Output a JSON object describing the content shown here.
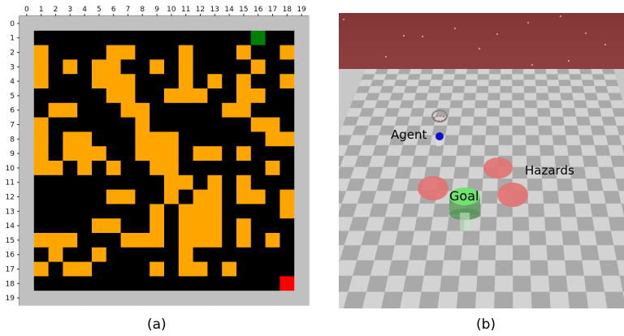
{
  "panel_a": {
    "caption": "(a)",
    "x_ticks": [
      "0",
      "1",
      "2",
      "3",
      "4",
      "5",
      "6",
      "7",
      "8",
      "9",
      "10",
      "11",
      "12",
      "13",
      "14",
      "15",
      "16",
      "17",
      "18",
      "19"
    ],
    "y_ticks": [
      "0",
      "1",
      "2",
      "3",
      "4",
      "5",
      "6",
      "7",
      "8",
      "9",
      "10",
      "11",
      "12",
      "13",
      "14",
      "15",
      "16",
      "17",
      "18",
      "19"
    ],
    "colors": {
      "wall": "#c0c0c0",
      "free": "#000000",
      "obstacle": "#ffa500",
      "start": "#008000",
      "goal": "#ff0000"
    },
    "start_cell": {
      "row": 1,
      "col": 16
    },
    "goal_cell": {
      "row": 18,
      "col": 18
    },
    "obstacles": [
      [
        2,
        1
      ],
      [
        2,
        6
      ],
      [
        2,
        7
      ],
      [
        2,
        11
      ],
      [
        2,
        15
      ],
      [
        2,
        18
      ],
      [
        3,
        1
      ],
      [
        3,
        3
      ],
      [
        3,
        5
      ],
      [
        3,
        6
      ],
      [
        3,
        9
      ],
      [
        3,
        11
      ],
      [
        3,
        16
      ],
      [
        4,
        1
      ],
      [
        4,
        5
      ],
      [
        4,
        6
      ],
      [
        4,
        7
      ],
      [
        4,
        11
      ],
      [
        4,
        13
      ],
      [
        4,
        15
      ],
      [
        4,
        18
      ],
      [
        5,
        6
      ],
      [
        5,
        7
      ],
      [
        5,
        10
      ],
      [
        5,
        11
      ],
      [
        5,
        12
      ],
      [
        5,
        15
      ],
      [
        5,
        16
      ],
      [
        6,
        2
      ],
      [
        6,
        3
      ],
      [
        6,
        7
      ],
      [
        6,
        8
      ],
      [
        6,
        14
      ],
      [
        6,
        15
      ],
      [
        7,
        1
      ],
      [
        7,
        8
      ],
      [
        7,
        16
      ],
      [
        7,
        17
      ],
      [
        8,
        1
      ],
      [
        8,
        3
      ],
      [
        8,
        4
      ],
      [
        8,
        8
      ],
      [
        8,
        9
      ],
      [
        8,
        10
      ],
      [
        8,
        17
      ],
      [
        8,
        18
      ],
      [
        9,
        1
      ],
      [
        9,
        3
      ],
      [
        9,
        4
      ],
      [
        9,
        5
      ],
      [
        9,
        8
      ],
      [
        9,
        9
      ],
      [
        9,
        10
      ],
      [
        9,
        12
      ],
      [
        9,
        13
      ],
      [
        9,
        15
      ],
      [
        10,
        1
      ],
      [
        10,
        2
      ],
      [
        10,
        4
      ],
      [
        10,
        6
      ],
      [
        10,
        9
      ],
      [
        10,
        10
      ],
      [
        10,
        17
      ],
      [
        11,
        10
      ],
      [
        11,
        11
      ],
      [
        11,
        13
      ],
      [
        11,
        15
      ],
      [
        12,
        6
      ],
      [
        12,
        7
      ],
      [
        12,
        10
      ],
      [
        12,
        12
      ],
      [
        12,
        13
      ],
      [
        12,
        15
      ],
      [
        12,
        16
      ],
      [
        12,
        18
      ],
      [
        13,
        9
      ],
      [
        13,
        11
      ],
      [
        13,
        12
      ],
      [
        13,
        13
      ],
      [
        13,
        18
      ],
      [
        14,
        5
      ],
      [
        14,
        6
      ],
      [
        14,
        9
      ],
      [
        14,
        11
      ],
      [
        14,
        12
      ],
      [
        14,
        13
      ],
      [
        14,
        15
      ],
      [
        15,
        1
      ],
      [
        15,
        2
      ],
      [
        15,
        3
      ],
      [
        15,
        7
      ],
      [
        15,
        8
      ],
      [
        15,
        9
      ],
      [
        15,
        11
      ],
      [
        15,
        12
      ],
      [
        15,
        13
      ],
      [
        15,
        15
      ],
      [
        15,
        17
      ],
      [
        16,
        2
      ],
      [
        16,
        5
      ],
      [
        16,
        11
      ],
      [
        17,
        1
      ],
      [
        17,
        3
      ],
      [
        17,
        4
      ],
      [
        17,
        9
      ],
      [
        17,
        11
      ],
      [
        17,
        12
      ],
      [
        17,
        14
      ]
    ]
  },
  "panel_b": {
    "caption": "(b)",
    "labels": {
      "agent": "Agent",
      "goal": "Goal",
      "hazards": "Hazards"
    },
    "colors": {
      "sky": "#8b3a3a",
      "floor_light": "#d2d2d2",
      "floor_dark": "#a6a6a6",
      "hazard": "#e06a6a",
      "goal": "#66dd66",
      "agent": "#1010cc"
    }
  }
}
